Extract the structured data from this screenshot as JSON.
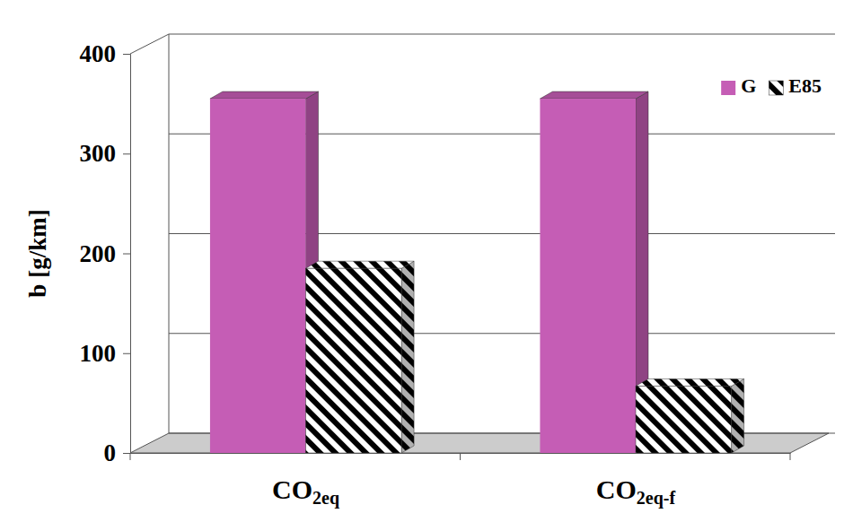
{
  "chart_data": {
    "type": "bar",
    "categories": [
      "CO2eq",
      "CO2eq-f"
    ],
    "series": [
      {
        "name": "G",
        "color": "#c55db5",
        "values": [
          355,
          355
        ]
      },
      {
        "name": "E85",
        "color": "#000000",
        "values": [
          185,
          67
        ]
      }
    ],
    "y_label": "b [g/km]",
    "ylim": [
      0,
      400
    ],
    "yticks": [
      0,
      100,
      200,
      300,
      400
    ],
    "grid": true,
    "legend": "top-right"
  }
}
